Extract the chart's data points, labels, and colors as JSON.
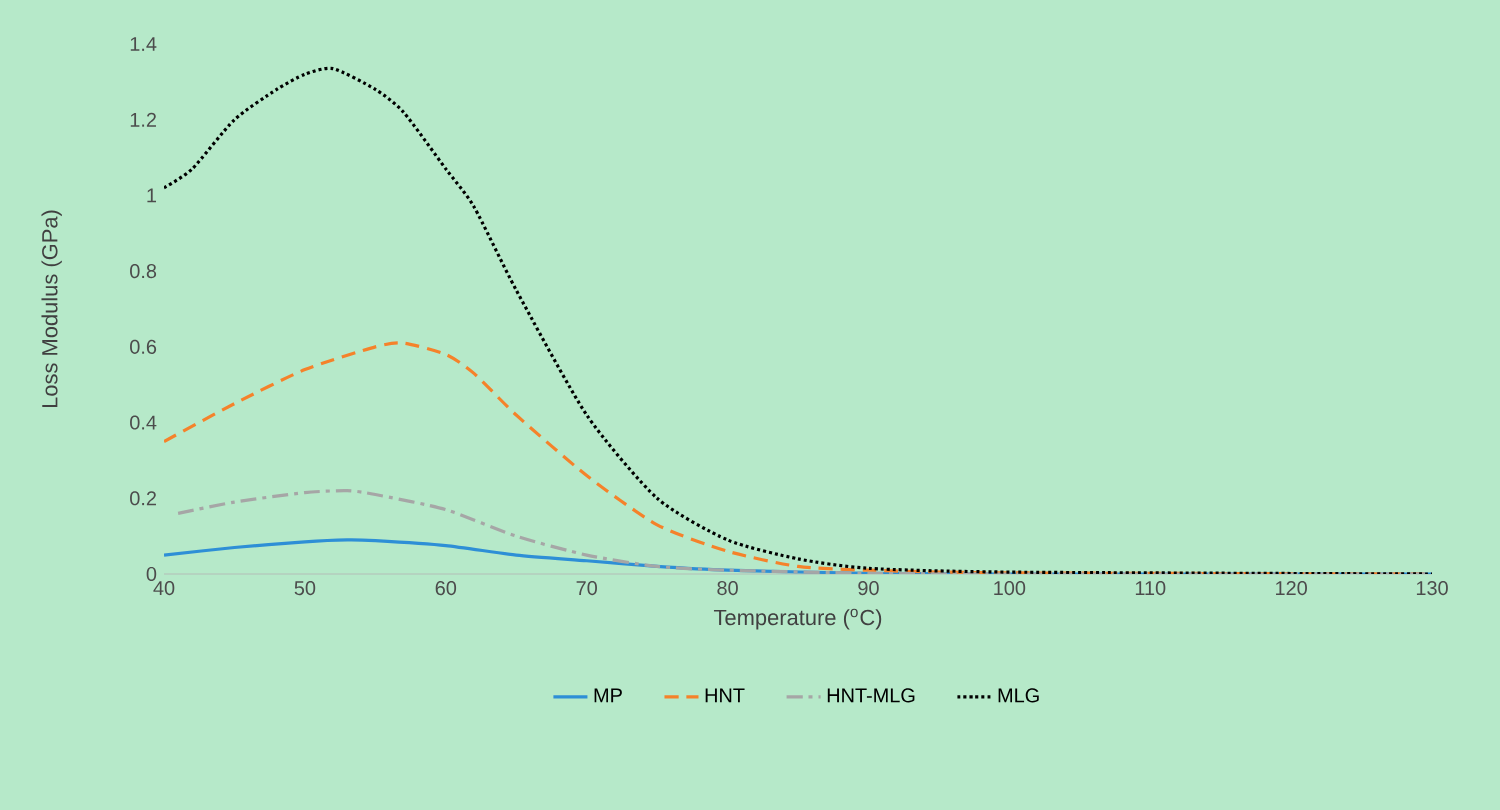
{
  "chart_data": {
    "type": "line",
    "xlabel": "Temperature ($^{o}$C)",
    "ylabel": "Loss Modulus (GPa)",
    "xlim": [
      40,
      130
    ],
    "xticks": [
      40,
      50,
      60,
      70,
      80,
      90,
      100,
      110,
      120,
      130
    ],
    "ylim": [
      0,
      1.4
    ],
    "yticks": [
      0,
      {
        "value": 0.2,
        "label": "0.2"
      },
      {
        "value": 0.4,
        "label": "0.4"
      },
      {
        "value": 0.6,
        "label": "0.6"
      },
      {
        "value": 0.8,
        "label": "0.8"
      },
      1,
      {
        "value": 1.2,
        "label": "1.2"
      },
      {
        "value": 1.4,
        "label": "1.4"
      }
    ],
    "grid": false,
    "legend": "bottom",
    "marker": "none",
    "series": [
      {
        "name": "MP",
        "color": "#2e8fd6",
        "line_style": "solid",
        "x": [
          40,
          45,
          50,
          53,
          55,
          60,
          65,
          70,
          75,
          80,
          90,
          100,
          130
        ],
        "values": [
          0.05,
          0.07,
          0.085,
          0.09,
          0.088,
          0.075,
          0.05,
          0.035,
          0.02,
          0.01,
          0.002,
          0,
          0
        ]
      },
      {
        "name": "HNT",
        "color": "#f5822a",
        "line_style": "dashed",
        "x": [
          40,
          45,
          50,
          55,
          57,
          60,
          62,
          65,
          70,
          75,
          80,
          85,
          90,
          100,
          130
        ],
        "values": [
          0.35,
          0.45,
          0.54,
          0.6,
          0.61,
          0.58,
          0.53,
          0.42,
          0.26,
          0.13,
          0.06,
          0.02,
          0.01,
          0.003,
          0
        ]
      },
      {
        "name": "HNT-MLG",
        "color": "#a6a6a6",
        "line_style": "dashdot",
        "x": [
          41,
          45,
          50,
          53,
          55,
          60,
          65,
          70,
          75,
          80,
          90,
          100,
          130
        ],
        "values": [
          0.16,
          0.19,
          0.215,
          0.22,
          0.21,
          0.17,
          0.1,
          0.05,
          0.02,
          0.01,
          0.002,
          0,
          0
        ]
      },
      {
        "name": "MLG",
        "color": "#000000",
        "line_style": "dotted",
        "x": [
          40,
          42,
          45,
          48,
          50,
          52,
          55,
          57,
          60,
          62,
          65,
          70,
          75,
          80,
          85,
          90,
          100,
          130
        ],
        "values": [
          1.02,
          1.07,
          1.2,
          1.28,
          1.32,
          1.335,
          1.28,
          1.22,
          1.07,
          0.97,
          0.75,
          0.42,
          0.2,
          0.09,
          0.04,
          0.015,
          0.005,
          0
        ]
      }
    ]
  }
}
